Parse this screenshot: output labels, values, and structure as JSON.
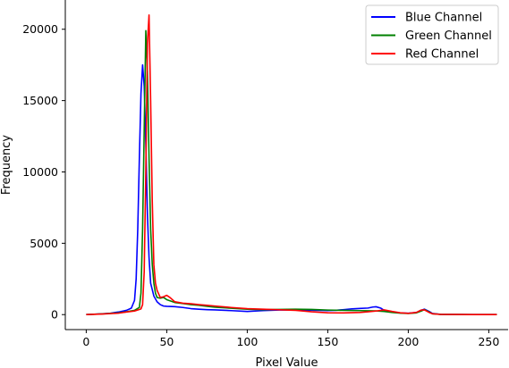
{
  "chart_data": {
    "type": "line",
    "title": "",
    "xlabel": "Pixel Value",
    "ylabel": "Frequency",
    "xlim": [
      -13,
      262
    ],
    "ylim": [
      -1050,
      22050
    ],
    "xticks": [
      0,
      50,
      100,
      150,
      200,
      250
    ],
    "yticks": [
      0,
      5000,
      10000,
      15000,
      20000
    ],
    "grid": false,
    "legend_position": "top-right",
    "series": [
      {
        "name": "Blue Channel",
        "color": "#0000ff",
        "x": [
          0,
          5,
          10,
          15,
          20,
          25,
          28,
          30,
          31,
          32,
          33,
          34,
          35,
          36,
          37,
          38,
          39,
          40,
          42,
          44,
          46,
          48,
          50,
          55,
          60,
          65,
          70,
          75,
          80,
          90,
          100,
          110,
          120,
          130,
          140,
          150,
          155,
          160,
          165,
          170,
          175,
          178,
          180,
          183,
          185,
          190,
          195,
          200,
          205,
          208,
          210,
          213,
          215,
          220,
          230,
          240,
          250,
          255
        ],
        "y": [
          0,
          30,
          60,
          100,
          180,
          300,
          450,
          1000,
          2500,
          6000,
          11000,
          15500,
          17500,
          16000,
          12000,
          7000,
          4000,
          2200,
          1300,
          900,
          700,
          600,
          580,
          560,
          500,
          420,
          380,
          350,
          330,
          280,
          220,
          280,
          320,
          330,
          310,
          280,
          300,
          350,
          400,
          430,
          460,
          530,
          550,
          450,
          300,
          180,
          120,
          100,
          150,
          300,
          380,
          220,
          80,
          20,
          10,
          5,
          5,
          5
        ]
      },
      {
        "name": "Green Channel",
        "color": "#008000",
        "x": [
          0,
          10,
          20,
          25,
          30,
          33,
          34,
          35,
          36,
          37,
          38,
          39,
          40,
          41,
          42,
          43,
          44,
          46,
          48,
          50,
          55,
          60,
          65,
          70,
          75,
          80,
          90,
          100,
          110,
          120,
          130,
          140,
          150,
          160,
          170,
          180,
          185,
          190,
          195,
          200,
          205,
          208,
          210,
          213,
          215,
          220,
          230,
          240,
          250,
          255
        ],
        "y": [
          0,
          50,
          120,
          200,
          300,
          500,
          1500,
          6000,
          13000,
          19900,
          17000,
          11000,
          6000,
          3500,
          2200,
          1500,
          1200,
          1150,
          1200,
          1050,
          850,
          780,
          700,
          650,
          580,
          520,
          450,
          380,
          350,
          360,
          380,
          360,
          320,
          300,
          280,
          260,
          220,
          150,
          100,
          80,
          120,
          250,
          350,
          180,
          60,
          20,
          10,
          5,
          5,
          5
        ]
      },
      {
        "name": "Red Channel",
        "color": "#ff0000",
        "x": [
          0,
          10,
          20,
          25,
          30,
          34,
          35,
          36,
          37,
          38,
          39,
          40,
          41,
          42,
          43,
          44,
          46,
          48,
          50,
          52,
          55,
          60,
          65,
          70,
          75,
          80,
          90,
          100,
          110,
          120,
          130,
          140,
          150,
          160,
          170,
          175,
          180,
          185,
          190,
          195,
          200,
          205,
          208,
          210,
          213,
          215,
          220,
          230,
          240,
          250,
          255
        ],
        "y": [
          0,
          40,
          100,
          180,
          250,
          400,
          700,
          3000,
          10000,
          19000,
          21000,
          15000,
          8000,
          3500,
          2200,
          1700,
          1200,
          1250,
          1350,
          1200,
          900,
          800,
          760,
          700,
          650,
          600,
          500,
          420,
          380,
          340,
          300,
          200,
          130,
          120,
          150,
          200,
          250,
          330,
          220,
          130,
          90,
          150,
          320,
          330,
          150,
          60,
          15,
          10,
          5,
          5,
          5
        ]
      }
    ]
  }
}
